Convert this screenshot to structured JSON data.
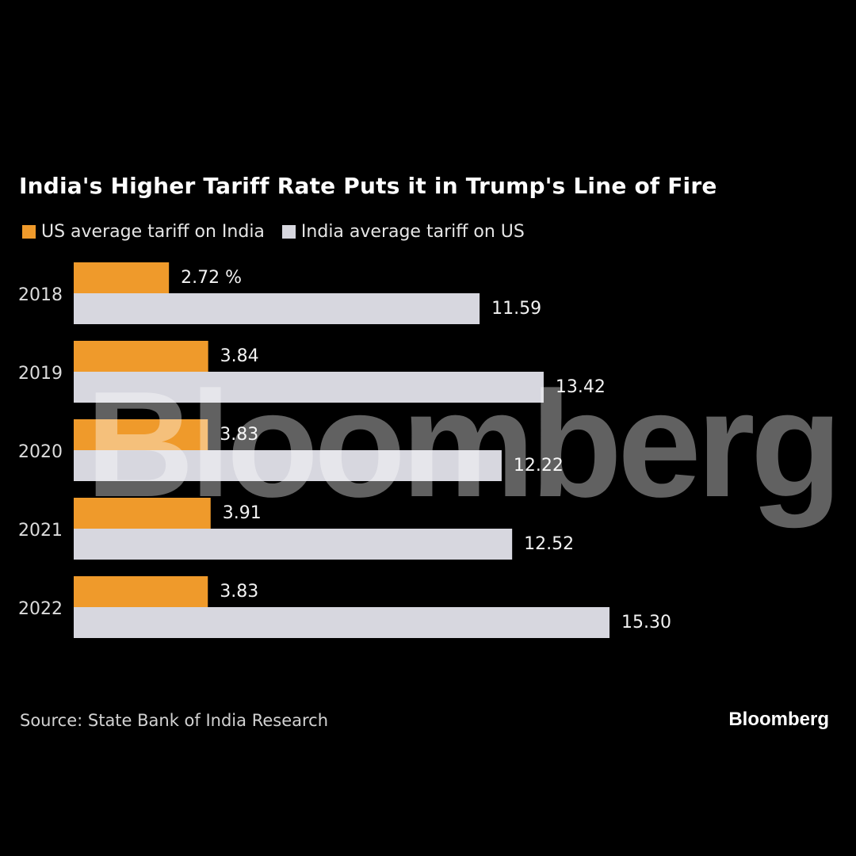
{
  "title": "India's Higher Tariff Rate Puts it in Trump's Line of Fire",
  "colors": {
    "background": "#000000",
    "us_series": "#ef9a2b",
    "india_series": "#d7d7df"
  },
  "legend": {
    "us": "US average tariff on India",
    "india": "India average tariff on US"
  },
  "source": "Source: State Bank of India Research",
  "brand": "Bloomberg",
  "watermark": "Bloomberg",
  "chart_data": {
    "type": "bar",
    "orientation": "horizontal",
    "categories": [
      "2018",
      "2019",
      "2020",
      "2021",
      "2022"
    ],
    "series": [
      {
        "name": "US average tariff on India",
        "values": [
          2.72,
          3.84,
          3.83,
          3.91,
          3.83
        ],
        "labels": [
          "2.72 %",
          "3.84",
          "3.83",
          "3.91",
          "3.83"
        ]
      },
      {
        "name": "India average tariff on US",
        "values": [
          11.59,
          13.42,
          12.22,
          12.52,
          15.3
        ],
        "labels": [
          "11.59",
          "13.42",
          "12.22",
          "12.52",
          "15.30"
        ]
      }
    ],
    "title": "India's Higher Tariff Rate Puts it in Trump's Line of Fire",
    "xlabel": "",
    "ylabel": "",
    "grid": false,
    "legend_position": "top-left"
  }
}
